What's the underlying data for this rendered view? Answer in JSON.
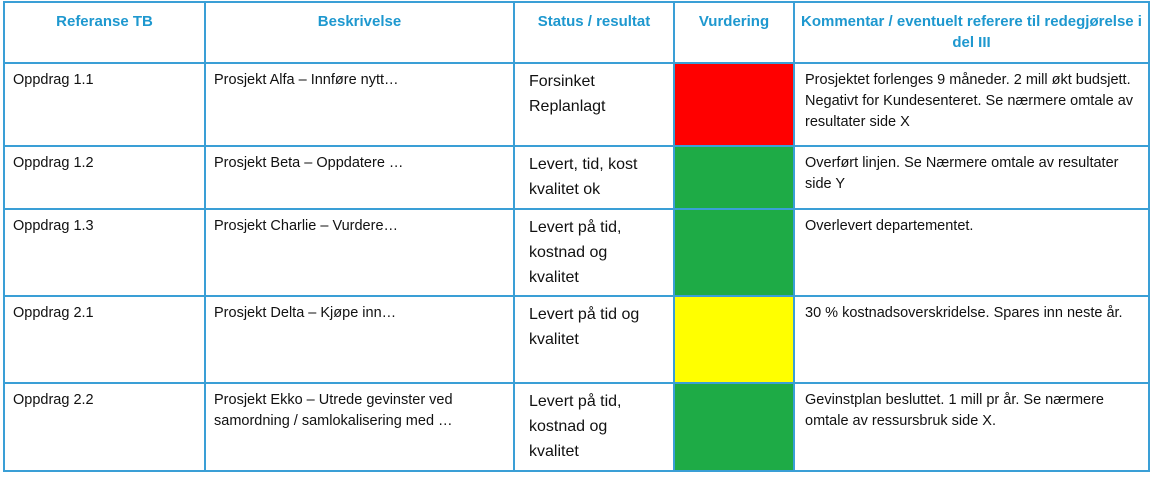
{
  "colors": {
    "border": "#3a9fd6",
    "header_text": "#1e98cf",
    "red": "#ff0000",
    "green": "#1eab46",
    "yellow": "#ffff00"
  },
  "headers": {
    "reference": "Referanse TB",
    "description": "Beskrivelse",
    "status": "Status / resultat",
    "rating": "Vurdering",
    "comment": "Kommentar / eventuelt referere til redegjørelse i del III"
  },
  "rows": [
    {
      "reference": "Oppdrag 1.1",
      "description": "Prosjekt Alfa – Innføre nytt…",
      "status": "Forsinket\nReplanlagt",
      "rating_color": "#ff0000",
      "comment": "Prosjektet forlenges 9 måneder. 2 mill økt budsjett. Negativt for Kundesenteret. Se nærmere omtale av resultater side X"
    },
    {
      "reference": "Oppdrag 1.2",
      "description": "Prosjekt Beta – Oppdatere …",
      "status": "Levert, tid, kost kvalitet ok",
      "rating_color": "#1eab46",
      "comment": "Overført linjen. Se Nærmere omtale av resultater side Y"
    },
    {
      "reference": "Oppdrag 1.3",
      "description": "Prosjekt Charlie – Vurdere…",
      "status": "Levert på tid, kostnad og kvalitet",
      "rating_color": "#1eab46",
      "comment": "Overlevert  departementet."
    },
    {
      "reference": "Oppdrag 2.1",
      "description": "Prosjekt Delta – Kjøpe inn…",
      "status": "Levert på tid og kvalitet",
      "rating_color": "#ffff00",
      "comment": "30 % kostnadsoverskridelse. Spares inn neste år."
    },
    {
      "reference": "Oppdrag 2.2",
      "description": "Prosjekt Ekko – Utrede  gevinster ved samordning / samlokalisering med …",
      "status": "Levert på tid, kostnad og kvalitet",
      "rating_color": "#1eab46",
      "comment": "Gevinstplan besluttet. 1 mill pr år. Se nærmere omtale av ressursbruk side X."
    }
  ]
}
